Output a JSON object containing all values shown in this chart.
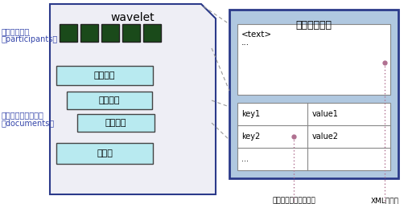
{
  "wavelet_title": "wavelet",
  "doc_title": "ドキュメント",
  "left_label1": "参加者リスト",
  "left_label1b": "（participants）",
  "left_label2": "ドキュメントリスト",
  "left_label2b": "（documents）",
  "box_tekisuto": "テキスト",
  "box_data": "データ",
  "text_line1": "<text>",
  "text_line2": "...",
  "key1": "key1",
  "val1": "value1",
  "key2": "key2",
  "val2": "value2",
  "dots": "...",
  "annotation_label": "アノテーションリスト",
  "xml_label": "XMLデータ",
  "wavelet_bg": "#eeeef5",
  "wavelet_border": "#2b3a8a",
  "doc_bg": "#b0c8e0",
  "doc_border": "#2b3a8a",
  "green_box": "#1a4a1a",
  "cyan_box": "#b8eaf0",
  "cyan_border": "#444444",
  "white_box": "#ffffff",
  "white_border": "#888888",
  "dotted_line_color": "#b07090",
  "dashed_line_color": "#999999",
  "text_color": "#000000",
  "blue_text": "#3344aa"
}
